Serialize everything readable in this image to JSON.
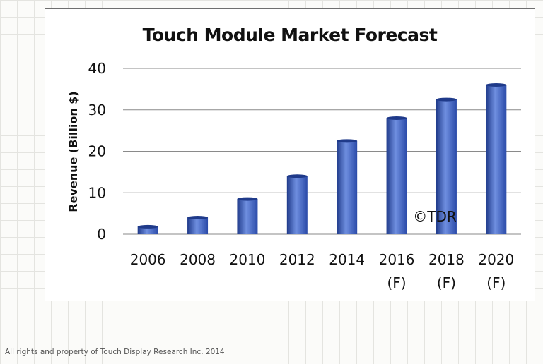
{
  "footer": "All rights and property of Touch Display Research Inc. 2014",
  "watermark": "©TDR",
  "colors": {
    "bar": "#3a5cbd",
    "bar_dark": "#1f3a8a",
    "bar_light": "#6f8fe0",
    "grid": "#8a8a8a"
  },
  "chart_data": {
    "type": "bar",
    "title": "Touch Module Market Forecast",
    "ylabel": "Revenue (Billion $)",
    "xlabel": "",
    "ylim": [
      0,
      40
    ],
    "yticks": [
      0,
      10,
      20,
      30,
      40
    ],
    "grid": true,
    "categories": [
      [
        "2006"
      ],
      [
        "2008"
      ],
      [
        "2010"
      ],
      [
        "2012"
      ],
      [
        "2014"
      ],
      [
        "2016",
        "(F)"
      ],
      [
        "2018",
        "(F)"
      ],
      [
        "2020",
        "(F)"
      ]
    ],
    "values": [
      1.8,
      4.0,
      8.5,
      14.0,
      22.5,
      28.0,
      32.5,
      36.0
    ]
  }
}
